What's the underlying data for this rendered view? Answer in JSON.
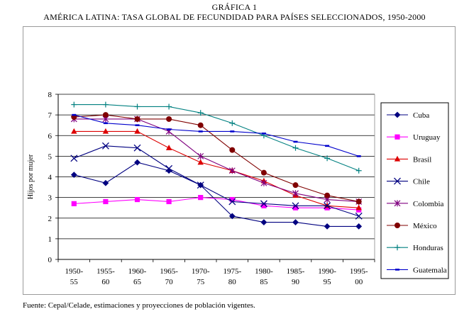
{
  "header": {
    "label": "GRÁFICA 1",
    "title": "AMÉRICA LATINA: TASA GLOBAL DE FECUNDIDAD PARA PAÍSES SELECCIONADOS, 1950-2000"
  },
  "footer": {
    "source": "Fuente: Cepal/Celade, estimaciones y proyecciones de población vigentes."
  },
  "chart_data": {
    "type": "line",
    "title": "AMÉRICA LATINA: TASA GLOBAL DE FECUNDIDAD PARA PAÍSES SELECCIONADOS, 1950-2000",
    "ylabel": "Hijos por mujer",
    "xlabel": "",
    "ylim": [
      0,
      8
    ],
    "yticks": [
      0,
      1,
      2,
      3,
      4,
      5,
      6,
      7,
      8
    ],
    "grid": "horizontal",
    "legend": "right",
    "categories": [
      [
        "1950-",
        "55"
      ],
      [
        "1955-",
        "60"
      ],
      [
        "1960-",
        "65"
      ],
      [
        "1965-",
        "70"
      ],
      [
        "1970-",
        "75"
      ],
      [
        "1975-",
        "80"
      ],
      [
        "1980-",
        "85"
      ],
      [
        "1985-",
        "90"
      ],
      [
        "1990-",
        "95"
      ],
      [
        "1995-",
        "00"
      ]
    ],
    "series": [
      {
        "name": "Cuba",
        "color": "#000080",
        "marker": "diamond",
        "values": [
          4.1,
          3.7,
          4.7,
          4.3,
          3.6,
          2.1,
          1.8,
          1.8,
          1.6,
          1.6
        ]
      },
      {
        "name": "Uruguay",
        "color": "#ff00ff",
        "marker": "square",
        "values": [
          2.7,
          2.8,
          2.9,
          2.8,
          3.0,
          2.9,
          2.6,
          2.5,
          2.5,
          2.4
        ]
      },
      {
        "name": "Brasil",
        "color": "#dd0000",
        "marker": "triangle",
        "values": [
          6.2,
          6.2,
          6.2,
          5.4,
          4.7,
          4.3,
          3.8,
          3.1,
          2.6,
          2.5
        ]
      },
      {
        "name": "Chile",
        "color": "#000080",
        "marker": "x",
        "values": [
          4.9,
          5.5,
          5.4,
          4.4,
          3.6,
          2.8,
          2.7,
          2.6,
          2.6,
          2.1
        ]
      },
      {
        "name": "Colombia",
        "color": "#800080",
        "marker": "star",
        "values": [
          6.8,
          6.8,
          6.8,
          6.2,
          5.0,
          4.3,
          3.7,
          3.2,
          2.9,
          2.8
        ]
      },
      {
        "name": "México",
        "color": "#800000",
        "marker": "circle",
        "values": [
          6.9,
          7.0,
          6.8,
          6.8,
          6.5,
          5.3,
          4.2,
          3.6,
          3.1,
          2.8
        ]
      },
      {
        "name": "Honduras",
        "color": "#008080",
        "marker": "plus",
        "values": [
          7.5,
          7.5,
          7.4,
          7.4,
          7.1,
          6.6,
          6.0,
          5.4,
          4.9,
          4.3
        ]
      },
      {
        "name": "Guatemala",
        "color": "#0000cc",
        "marker": "bar",
        "values": [
          7.0,
          6.6,
          6.5,
          6.3,
          6.2,
          6.2,
          6.1,
          5.7,
          5.5,
          5.0
        ]
      }
    ]
  }
}
